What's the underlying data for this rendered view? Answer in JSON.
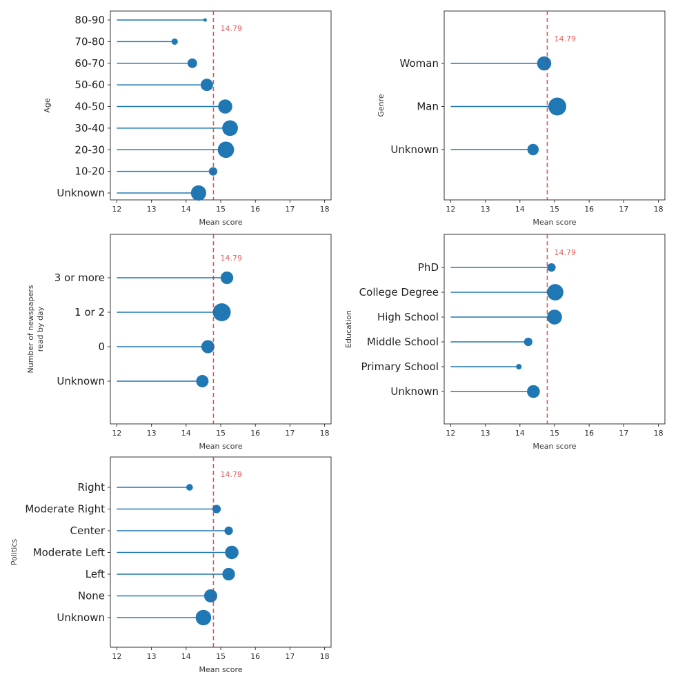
{
  "reference": {
    "value": 14.79,
    "label": "14.79",
    "color": "#d62728"
  },
  "marker_color": "#1f77b4",
  "chart_data": [
    {
      "id": "age",
      "type": "lollipop",
      "ylabel": "Age",
      "xlabel": "Mean score",
      "xlim": [
        12,
        18
      ],
      "xticks": [
        12,
        13,
        14,
        15,
        16,
        17,
        18
      ],
      "categories": [
        "80-90",
        "70-80",
        "60-70",
        "50-60",
        "40-50",
        "30-40",
        "20-30",
        "10-20",
        "Unknown"
      ],
      "values": [
        14.55,
        13.67,
        14.18,
        14.6,
        15.13,
        15.27,
        15.15,
        14.78,
        14.36
      ],
      "relative_sizes": [
        0.0,
        0.04,
        0.18,
        0.38,
        0.55,
        0.72,
        0.8,
        0.12,
        0.67
      ]
    },
    {
      "id": "genre",
      "type": "lollipop",
      "ylabel": "Genre",
      "xlabel": "Mean score",
      "xlim": [
        12,
        18
      ],
      "xticks": [
        12,
        13,
        14,
        15,
        16,
        17,
        18
      ],
      "categories": [
        "Woman",
        "Man",
        "Unknown"
      ],
      "values": [
        14.7,
        15.08,
        14.38
      ],
      "relative_sizes": [
        0.55,
        1.0,
        0.3
      ]
    },
    {
      "id": "newspapers",
      "type": "lollipop",
      "ylabel": [
        "Number of newspapers",
        "read by day"
      ],
      "xlabel": "Mean score",
      "xlim": [
        12,
        18
      ],
      "xticks": [
        12,
        13,
        14,
        15,
        16,
        17,
        18
      ],
      "categories": [
        "3 or more",
        "1 or 2",
        "0",
        "Unknown"
      ],
      "values": [
        15.18,
        15.03,
        14.63,
        14.47
      ],
      "relative_sizes": [
        0.4,
        1.0,
        0.45,
        0.38
      ]
    },
    {
      "id": "education",
      "type": "lollipop",
      "ylabel": "Education",
      "xlabel": "Mean score",
      "xlim": [
        12,
        18
      ],
      "xticks": [
        12,
        13,
        14,
        15,
        16,
        17,
        18
      ],
      "categories": [
        "PhD",
        "College Degree",
        "High School",
        "Middle School",
        "Primary School",
        "Unknown"
      ],
      "values": [
        14.91,
        15.02,
        15.0,
        14.24,
        13.97,
        14.39
      ],
      "relative_sizes": [
        0.12,
        0.8,
        0.62,
        0.12,
        0.02,
        0.42
      ]
    },
    {
      "id": "politics",
      "type": "lollipop",
      "ylabel": "Politics",
      "xlabel": "Mean score",
      "xlim": [
        12,
        18
      ],
      "xticks": [
        12,
        13,
        14,
        15,
        16,
        17,
        18
      ],
      "categories": [
        "Right",
        "Moderate Right",
        "Center",
        "Moderate Left",
        "Left",
        "None",
        "Unknown"
      ],
      "values": [
        14.1,
        14.88,
        15.23,
        15.32,
        15.23,
        14.71,
        14.5
      ],
      "relative_sizes": [
        0.05,
        0.12,
        0.12,
        0.48,
        0.4,
        0.45,
        0.7
      ]
    }
  ]
}
